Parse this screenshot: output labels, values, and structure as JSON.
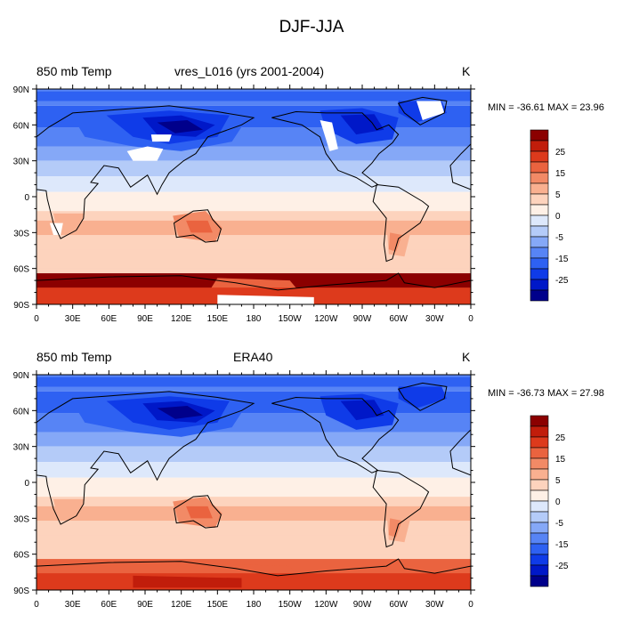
{
  "figure": {
    "title": "DJF-JJA"
  },
  "colorbar": {
    "colors": [
      "#00008b",
      "#0018c8",
      "#0f3be8",
      "#2e61f2",
      "#5784f5",
      "#85a8f7",
      "#b4cbf8",
      "#dde8fb",
      "#fef0e6",
      "#fdd3bd",
      "#f9b090",
      "#f28a66",
      "#ea633f",
      "#dd3a1c",
      "#c11d0b",
      "#8b0000"
    ],
    "tick_labels": [
      "25",
      "15",
      "5",
      "0",
      "-5",
      "-15",
      "-25"
    ]
  },
  "axes": {
    "lat_labels": [
      "90N",
      "60N",
      "30N",
      "0",
      "30S",
      "60S",
      "90S"
    ],
    "lon_labels": [
      "0",
      "30E",
      "60E",
      "90E",
      "120E",
      "150E",
      "180",
      "150W",
      "120W",
      "90W",
      "60W",
      "30W",
      "0"
    ]
  },
  "panels": [
    {
      "left_string": "850 mb Temp",
      "center_string": "vres_L016 (yrs 2001-2004)",
      "right_string": "K",
      "min_max": "MIN = -36.61 MAX =  23.96",
      "missing_over_high_terrain": true
    },
    {
      "left_string": "850 mb Temp",
      "center_string": "ERA40",
      "right_string": "K",
      "min_max": "MIN = -36.73 MAX =  27.98",
      "missing_over_high_terrain": false
    }
  ]
}
